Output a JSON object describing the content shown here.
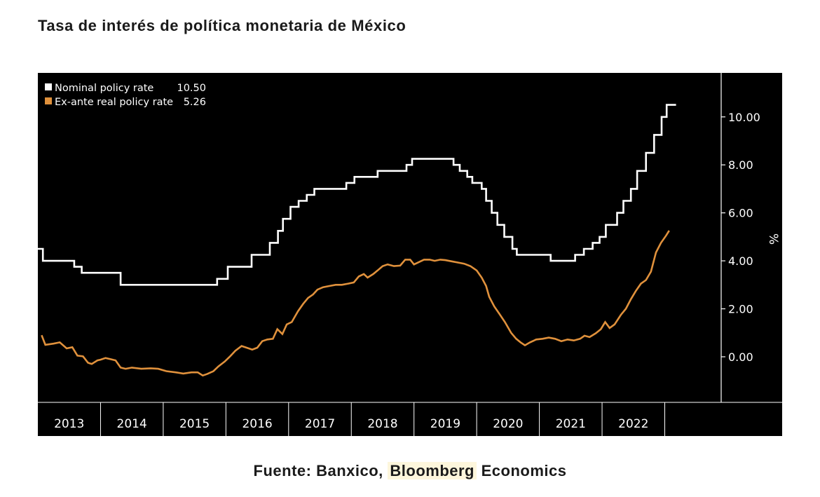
{
  "page": {
    "title": "Tasa de interés de política monetaria de México",
    "source_prefix": "Fuente: Banxico, ",
    "source_highlight": "Bloomberg",
    "source_suffix": " Economics"
  },
  "colors": {
    "background": "#000000",
    "nominal": "#ffffff",
    "real": "#e0913c",
    "axis": "#ffffff",
    "highlight": "#fdf6dc"
  },
  "chart_data": {
    "type": "line",
    "title": "",
    "xlabel": "",
    "ylabel": "%",
    "xlim": [
      2012.5,
      2023.4
    ],
    "ylim": [
      -1.9,
      11.6
    ],
    "y_axis_side": "right",
    "grid": false,
    "legend_position": "top-left",
    "x_tick_labels": [
      "2013",
      "2014",
      "2015",
      "2016",
      "2017",
      "2018",
      "2019",
      "2020",
      "2021",
      "2022"
    ],
    "x_tick_centers": [
      2013.0,
      2014.0,
      2015.0,
      2016.0,
      2017.0,
      2018.0,
      2019.0,
      2020.0,
      2021.0,
      2022.0
    ],
    "x_separators": [
      2013.5,
      2014.5,
      2015.5,
      2016.5,
      2017.5,
      2018.5,
      2019.5,
      2020.5,
      2021.5,
      2022.5
    ],
    "y_ticks": [
      0,
      2,
      4,
      6,
      8,
      10
    ],
    "y_tick_labels": [
      "0.00",
      "2.00",
      "4.00",
      "6.00",
      "8.00",
      "10.00"
    ],
    "series": [
      {
        "name": "Nominal policy rate",
        "last_value_label": "10.50",
        "step": true,
        "points": [
          [
            2012.5,
            4.5
          ],
          [
            2012.58,
            4.0
          ],
          [
            2013.08,
            3.75
          ],
          [
            2013.2,
            3.5
          ],
          [
            2013.82,
            3.0
          ],
          [
            2015.36,
            3.25
          ],
          [
            2015.53,
            3.75
          ],
          [
            2015.91,
            4.25
          ],
          [
            2016.2,
            4.75
          ],
          [
            2016.33,
            5.25
          ],
          [
            2016.41,
            5.75
          ],
          [
            2016.53,
            6.25
          ],
          [
            2016.66,
            6.5
          ],
          [
            2016.79,
            6.75
          ],
          [
            2016.91,
            7.0
          ],
          [
            2017.42,
            7.25
          ],
          [
            2017.55,
            7.5
          ],
          [
            2017.92,
            7.75
          ],
          [
            2018.38,
            8.0
          ],
          [
            2018.47,
            8.25
          ],
          [
            2019.13,
            8.0
          ],
          [
            2019.23,
            7.75
          ],
          [
            2019.35,
            7.5
          ],
          [
            2019.43,
            7.25
          ],
          [
            2019.58,
            7.0
          ],
          [
            2019.65,
            6.5
          ],
          [
            2019.74,
            6.0
          ],
          [
            2019.83,
            5.5
          ],
          [
            2019.94,
            5.0
          ],
          [
            2020.07,
            4.5
          ],
          [
            2020.14,
            4.25
          ],
          [
            2020.68,
            4.0
          ],
          [
            2021.07,
            4.25
          ],
          [
            2021.21,
            4.5
          ],
          [
            2021.35,
            4.75
          ],
          [
            2021.46,
            5.0
          ],
          [
            2021.56,
            5.5
          ],
          [
            2021.74,
            6.0
          ],
          [
            2021.84,
            6.5
          ],
          [
            2021.96,
            7.0
          ],
          [
            2022.06,
            7.75
          ],
          [
            2022.2,
            8.5
          ],
          [
            2022.33,
            9.25
          ],
          [
            2022.45,
            10.0
          ],
          [
            2022.53,
            10.5
          ],
          [
            2022.68,
            10.5
          ]
        ]
      },
      {
        "name": "Ex-ante real policy rate",
        "last_value_label": "5.26",
        "step": false,
        "points": [
          [
            2012.56,
            0.9
          ],
          [
            2012.62,
            0.5
          ],
          [
            2012.75,
            0.55
          ],
          [
            2012.85,
            0.6
          ],
          [
            2012.96,
            0.35
          ],
          [
            2013.05,
            0.4
          ],
          [
            2013.13,
            0.05
          ],
          [
            2013.22,
            0.02
          ],
          [
            2013.3,
            -0.25
          ],
          [
            2013.36,
            -0.3
          ],
          [
            2013.45,
            -0.15
          ],
          [
            2013.5,
            -0.12
          ],
          [
            2013.58,
            -0.05
          ],
          [
            2013.66,
            -0.1
          ],
          [
            2013.74,
            -0.15
          ],
          [
            2013.82,
            -0.45
          ],
          [
            2013.9,
            -0.5
          ],
          [
            2014.0,
            -0.45
          ],
          [
            2014.15,
            -0.5
          ],
          [
            2014.3,
            -0.48
          ],
          [
            2014.42,
            -0.5
          ],
          [
            2014.55,
            -0.6
          ],
          [
            2014.7,
            -0.65
          ],
          [
            2014.82,
            -0.7
          ],
          [
            2014.95,
            -0.65
          ],
          [
            2015.05,
            -0.65
          ],
          [
            2015.13,
            -0.78
          ],
          [
            2015.2,
            -0.72
          ],
          [
            2015.3,
            -0.6
          ],
          [
            2015.38,
            -0.4
          ],
          [
            2015.48,
            -0.2
          ],
          [
            2015.56,
            0.0
          ],
          [
            2015.65,
            0.25
          ],
          [
            2015.75,
            0.45
          ],
          [
            2015.83,
            0.38
          ],
          [
            2015.92,
            0.3
          ],
          [
            2016.0,
            0.38
          ],
          [
            2016.08,
            0.65
          ],
          [
            2016.16,
            0.72
          ],
          [
            2016.25,
            0.75
          ],
          [
            2016.32,
            1.15
          ],
          [
            2016.4,
            0.95
          ],
          [
            2016.47,
            1.35
          ],
          [
            2016.55,
            1.45
          ],
          [
            2016.65,
            1.9
          ],
          [
            2016.73,
            2.2
          ],
          [
            2016.81,
            2.45
          ],
          [
            2016.89,
            2.6
          ],
          [
            2016.96,
            2.8
          ],
          [
            2017.05,
            2.9
          ],
          [
            2017.15,
            2.95
          ],
          [
            2017.25,
            3.0
          ],
          [
            2017.35,
            3.0
          ],
          [
            2017.45,
            3.05
          ],
          [
            2017.54,
            3.1
          ],
          [
            2017.62,
            3.35
          ],
          [
            2017.7,
            3.45
          ],
          [
            2017.76,
            3.3
          ],
          [
            2017.85,
            3.45
          ],
          [
            2017.92,
            3.6
          ],
          [
            2018.0,
            3.78
          ],
          [
            2018.08,
            3.85
          ],
          [
            2018.18,
            3.78
          ],
          [
            2018.28,
            3.8
          ],
          [
            2018.36,
            4.05
          ],
          [
            2018.44,
            4.05
          ],
          [
            2018.5,
            3.85
          ],
          [
            2018.58,
            3.95
          ],
          [
            2018.66,
            4.05
          ],
          [
            2018.75,
            4.05
          ],
          [
            2018.83,
            4.0
          ],
          [
            2018.92,
            4.05
          ],
          [
            2019.0,
            4.03
          ],
          [
            2019.1,
            3.98
          ],
          [
            2019.2,
            3.93
          ],
          [
            2019.3,
            3.88
          ],
          [
            2019.4,
            3.78
          ],
          [
            2019.5,
            3.6
          ],
          [
            2019.58,
            3.3
          ],
          [
            2019.65,
            2.95
          ],
          [
            2019.7,
            2.5
          ],
          [
            2019.78,
            2.1
          ],
          [
            2019.86,
            1.8
          ],
          [
            2019.95,
            1.45
          ],
          [
            2020.05,
            1.0
          ],
          [
            2020.13,
            0.75
          ],
          [
            2020.2,
            0.6
          ],
          [
            2020.27,
            0.48
          ],
          [
            2020.35,
            0.6
          ],
          [
            2020.45,
            0.72
          ],
          [
            2020.55,
            0.75
          ],
          [
            2020.65,
            0.8
          ],
          [
            2020.75,
            0.75
          ],
          [
            2020.85,
            0.65
          ],
          [
            2020.95,
            0.72
          ],
          [
            2021.05,
            0.68
          ],
          [
            2021.15,
            0.75
          ],
          [
            2021.22,
            0.88
          ],
          [
            2021.3,
            0.82
          ],
          [
            2021.4,
            0.98
          ],
          [
            2021.48,
            1.15
          ],
          [
            2021.55,
            1.45
          ],
          [
            2021.62,
            1.2
          ],
          [
            2021.7,
            1.35
          ],
          [
            2021.8,
            1.75
          ],
          [
            2021.88,
            2.0
          ],
          [
            2021.96,
            2.4
          ],
          [
            2022.04,
            2.75
          ],
          [
            2022.12,
            3.05
          ],
          [
            2022.2,
            3.2
          ],
          [
            2022.28,
            3.55
          ],
          [
            2022.36,
            4.35
          ],
          [
            2022.44,
            4.75
          ],
          [
            2022.52,
            5.05
          ],
          [
            2022.57,
            5.26
          ]
        ]
      }
    ]
  }
}
